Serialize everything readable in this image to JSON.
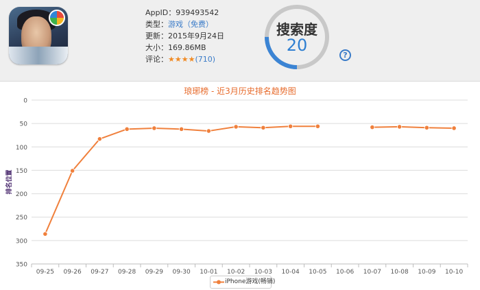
{
  "app": {
    "appid_label": "AppID：",
    "appid": "939493542",
    "type_label": "类型：",
    "type_value": "游戏（免费）",
    "update_label": "更新：",
    "update_value": "2015年9月24日",
    "size_label": "大小：",
    "size_value": "169.86MB",
    "rating_label": "评论：",
    "rating_stars": "★★★★",
    "rating_count": "(710)"
  },
  "search_index": {
    "label": "搜索度",
    "value": "20",
    "fill_fraction": 0.25,
    "track_color": "#c8c8c8",
    "fill_color": "#3b84d4"
  },
  "icons": {
    "help": "question-circle-icon",
    "help_glyph": "?"
  },
  "chart_data": {
    "type": "line",
    "title": "琅琊榜 - 近3月历史排名趋势图",
    "ylabel": "排名位置",
    "xlabel": "",
    "y_reversed": true,
    "ylim": [
      0,
      350
    ],
    "y_ticks": [
      "0",
      "50",
      "100",
      "150",
      "200",
      "250",
      "300",
      "350"
    ],
    "categories": [
      "09-25",
      "09-26",
      "09-27",
      "09-28",
      "09-29",
      "09-30",
      "10-01",
      "10-02",
      "10-03",
      "10-04",
      "10-05",
      "10-06",
      "10-07",
      "10-08",
      "10-09",
      "10-10"
    ],
    "series": [
      {
        "name": "iPhone游戏(畅销)",
        "color": "#f0803c",
        "points": [
          {
            "x": 0,
            "y": 286
          },
          {
            "x": 1,
            "y": 151
          },
          {
            "x": 2,
            "y": 83
          },
          {
            "x": 3,
            "y": 62
          },
          {
            "x": 4,
            "y": 60
          },
          {
            "x": 5,
            "y": 62
          },
          {
            "x": 6,
            "y": 66
          },
          {
            "x": 7,
            "y": 57
          },
          {
            "x": 8,
            "y": 59
          },
          {
            "x": 9,
            "y": 56
          },
          {
            "x": 10,
            "y": 56
          },
          {
            "x": 12,
            "y": 58
          },
          {
            "x": 13,
            "y": 57
          },
          {
            "x": 14,
            "y": 59
          },
          {
            "x": 15,
            "y": 60
          }
        ]
      }
    ],
    "grid": true,
    "legend": "bottom-center"
  }
}
